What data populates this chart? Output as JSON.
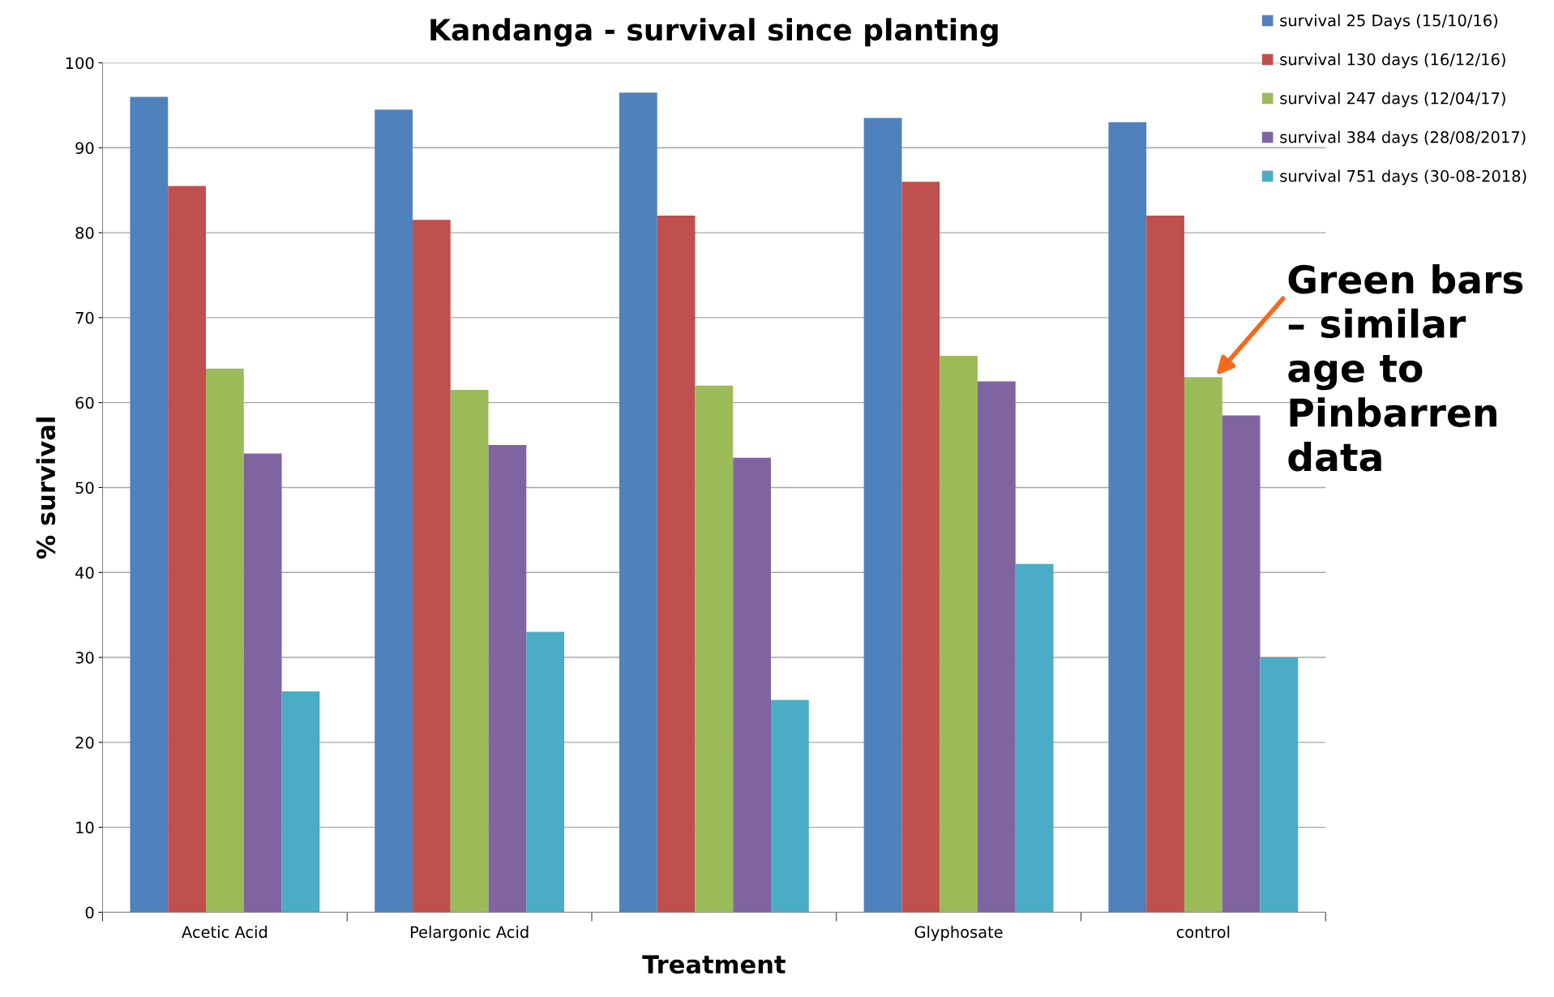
{
  "chart_data": {
    "type": "bar",
    "title": "Kandanga - survival since planting",
    "xlabel": "Treatment",
    "ylabel": "% survival",
    "categories": [
      "Acetic Acid",
      "Pelargonic Acid",
      null,
      "Glyphosate",
      "control"
    ],
    "series": [
      {
        "name": "survival 25 Days (15/10/16)",
        "color": "#4f81bd",
        "values": [
          96,
          94.5,
          96.5,
          93.5,
          93
        ]
      },
      {
        "name": "survival 130 days (16/12/16)",
        "color": "#c0504d",
        "values": [
          85.5,
          81.5,
          82,
          86,
          82
        ]
      },
      {
        "name": "survival 247 days (12/04/17)",
        "color": "#9bbb59",
        "values": [
          64,
          61.5,
          62,
          65.5,
          63
        ]
      },
      {
        "name": "survival 384 days (28/08/2017)",
        "color": "#8064a2",
        "values": [
          54,
          55,
          53.5,
          62.5,
          58.5
        ]
      },
      {
        "name": "survival 751 days (30-08-2018)",
        "color": "#4bacc6",
        "values": [
          26,
          33,
          25,
          41,
          30
        ]
      }
    ],
    "ylim": [
      0,
      100
    ],
    "yticks": [
      0,
      10,
      20,
      30,
      40,
      50,
      60,
      70,
      80,
      90,
      100
    ],
    "grid": "y",
    "legend": "top right",
    "annotations": [
      {
        "text": "Green bars\n– similar\nage to\nPinbarren\ndata",
        "x": "control",
        "y": 63
      }
    ]
  }
}
